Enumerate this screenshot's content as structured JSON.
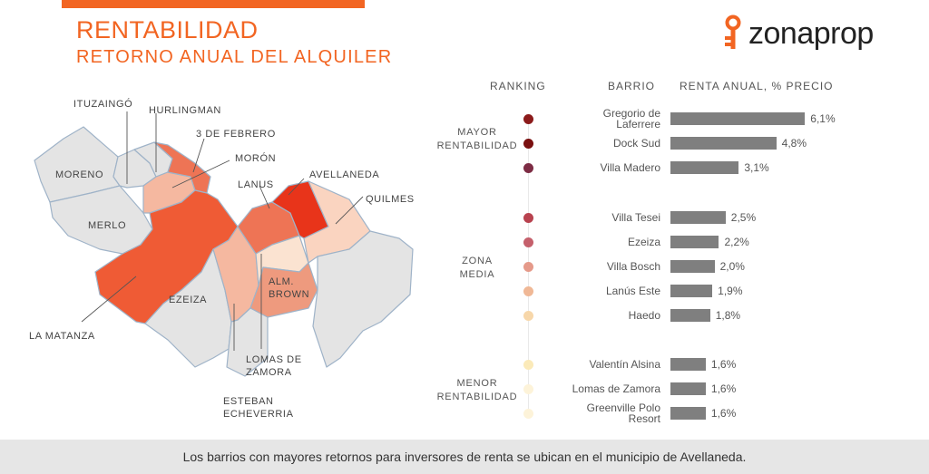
{
  "header": {
    "title": "RENTABILIDAD",
    "subtitle": "RETORNO ANUAL DEL ALQUILER",
    "brand": "zonaprop"
  },
  "colors": {
    "accent": "#f26522",
    "bar": "#7f7f7f",
    "map_base": "#e4e4e4",
    "map_border": "#9fb3c8"
  },
  "map": {
    "labels": {
      "ituzaingo": "ITUZAINGÓ",
      "hurlingman": "HURLINGMAN",
      "tres_febrero": "3 DE FEBRERO",
      "moron": "MORÓN",
      "avellaneda": "AVELLANEDA",
      "lanus": "LANUS",
      "quilmes": "QUILMES",
      "moreno": "MORENO",
      "merlo": "MERLO",
      "ezeiza": "EZEIZA",
      "alm_brown_1": "ALM.",
      "alm_brown_2": "BROWN",
      "la_matanza": "LA MATANZA",
      "lomas_1": "LOMAS DE",
      "lomas_2": "ZAMORA",
      "esteban_1": "ESTEBAN",
      "esteban_2": "ECHEVERRIA"
    }
  },
  "ranking": {
    "headers": {
      "ranking": "RANKING",
      "barrio": "BARRIO",
      "renta": "RENTA ANUAL, % PRECIO"
    },
    "groups": {
      "mayor_1": "MAYOR",
      "mayor_2": "RENTABILIDAD",
      "media_1": "ZONA",
      "media_2": "MEDIA",
      "menor_1": "MENOR",
      "menor_2": "RENTABILIDAD"
    }
  },
  "chart_data": {
    "type": "bar",
    "orientation": "horizontal",
    "ylabel": "RENTA ANUAL, % PRECIO",
    "unit": "%",
    "categories": [
      "Gregorio de Laferrere",
      "Dock Sud",
      "Villa Madero",
      "Villa Tesei",
      "Ezeiza",
      "Villa Bosch",
      "Lanús Este",
      "Haedo",
      "Valentín Alsina",
      "Lomas de Zamora",
      "Greenville Polo Resort"
    ],
    "label_lines": [
      [
        "Gregorio de",
        "Laferrere"
      ],
      [
        "Dock Sud"
      ],
      [
        "Villa Madero"
      ],
      [
        "Villa Tesei"
      ],
      [
        "Ezeiza"
      ],
      [
        "Villa Bosch"
      ],
      [
        "Lanús Este"
      ],
      [
        "Haedo"
      ],
      [
        "Valentín Alsina"
      ],
      [
        "Lomas de Zamora"
      ],
      [
        "Greenville Polo",
        "Resort"
      ]
    ],
    "values": [
      6.1,
      4.8,
      3.1,
      2.5,
      2.2,
      2.0,
      1.9,
      1.8,
      1.6,
      1.6,
      1.6
    ],
    "value_labels": [
      "6,1%",
      "4,8%",
      "3,1%",
      "2,5%",
      "2,2%",
      "2,0%",
      "1,9%",
      "1,8%",
      "1,6%",
      "1,6%",
      "1,6%"
    ],
    "groups": [
      "mayor",
      "mayor",
      "mayor",
      "media",
      "media",
      "media",
      "media",
      "media",
      "menor",
      "menor",
      "menor"
    ],
    "dot_colors": [
      "#8c1b1b",
      "#7a1010",
      "#7d2c44",
      "#b8424f",
      "#c5606c",
      "#e59a8a",
      "#f0b896",
      "#f7d7aa",
      "#fbeab9",
      "#fdf3d9",
      "#fdf3d9"
    ],
    "xlim": [
      0,
      6.5
    ]
  },
  "footer": {
    "text": "Los barrios con mayores retornos para inversores de renta se ubican en el municipio de Avellaneda."
  }
}
